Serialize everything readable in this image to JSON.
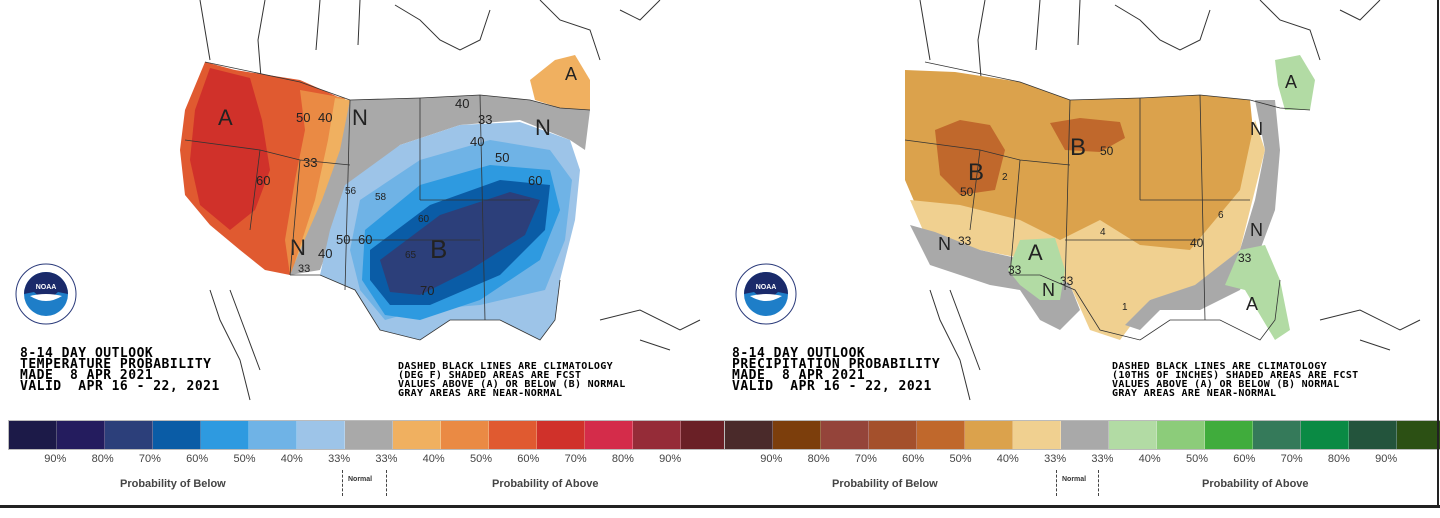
{
  "panels": [
    {
      "id": "temperature",
      "title_lines": [
        "8-14 DAY OUTLOOK",
        "TEMPERATURE PROBABILITY",
        "MADE  8 APR 2021",
        "VALID  APR 16 - 22, 2021"
      ],
      "note_lines": [
        "DASHED BLACK LINES ARE CLIMATOLOGY",
        "(DEG F) SHADED AREAS ARE FCST",
        "VALUES ABOVE (A) OR BELOW (B) NORMAL",
        "GRAY AREAS ARE NEAR-NORMAL"
      ],
      "map_labels": {
        "region_letters": [
          "A",
          "A",
          "N",
          "N",
          "N",
          "B"
        ],
        "contour_values": [
          "50",
          "40",
          "33",
          "60",
          "40",
          "33",
          "40",
          "50",
          "60",
          "50",
          "60",
          "33",
          "40",
          "70"
        ],
        "climatology_values": [
          "56",
          "58",
          "60",
          "65"
        ]
      },
      "legend": {
        "colors": [
          "#1c1a48",
          "#241c5e",
          "#2c3f7a",
          "#0a5ca6",
          "#2e9ae0",
          "#6fb3e6",
          "#9dc4e8",
          "#a9a9a9",
          "#f0b060",
          "#ea8a44",
          "#e05a30",
          "#d0312a",
          "#d42c4a",
          "#952c38",
          "#6a2026"
        ],
        "ticks": [
          "90%",
          "80%",
          "70%",
          "60%",
          "50%",
          "40%",
          "33%",
          "33%",
          "40%",
          "50%",
          "60%",
          "70%",
          "80%",
          "90%"
        ],
        "below_label": "Probability of Below",
        "normal_label": "Normal",
        "above_label": "Probability of Above"
      }
    },
    {
      "id": "precipitation",
      "title_lines": [
        "8-14 DAY OUTLOOK",
        "PRECIPITATION PROBABILITY",
        "MADE  8 APR 2021",
        "VALID  APR 16 - 22, 2021"
      ],
      "note_lines": [
        "DASHED BLACK LINES ARE CLIMATOLOGY",
        "(10THS OF INCHES) SHADED AREAS ARE FCST",
        "VALUES ABOVE (A) OR BELOW (B) NORMAL",
        "GRAY AREAS ARE NEAR-NORMAL"
      ],
      "map_labels": {
        "region_letters": [
          "B",
          "B",
          "A",
          "A",
          "A",
          "N",
          "N",
          "N",
          "N"
        ],
        "contour_values": [
          "50",
          "50",
          "33",
          "33",
          "33",
          "40",
          "33"
        ],
        "climatology_values": [
          "2",
          "4",
          "6",
          "1"
        ]
      },
      "legend": {
        "colors": [
          "#4a2a2a",
          "#7c3e0c",
          "#94443a",
          "#a4502c",
          "#c0682c",
          "#dba24c",
          "#f0d090",
          "#a9a9a9",
          "#b2dba4",
          "#8ccc7a",
          "#40ac3c",
          "#357a5a",
          "#0a8a44",
          "#23543c",
          "#2c5014"
        ],
        "ticks": [
          "90%",
          "80%",
          "70%",
          "60%",
          "50%",
          "40%",
          "33%",
          "33%",
          "40%",
          "50%",
          "60%",
          "70%",
          "80%",
          "90%"
        ],
        "below_label": "Probability of Below",
        "normal_label": "Normal",
        "above_label": "Probability of Above"
      }
    }
  ],
  "logo": {
    "text": "NOAA"
  }
}
